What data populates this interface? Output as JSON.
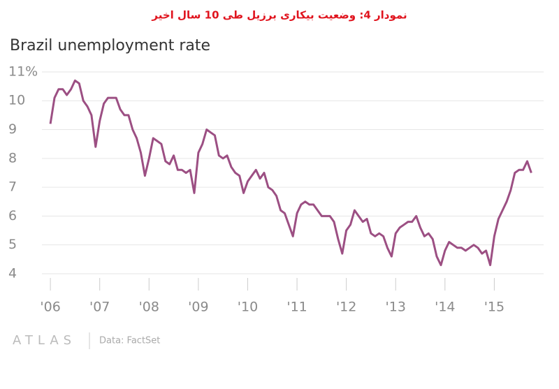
{
  "header": "نمودار 4: وضعیت بیکاری برزیل طی 10 سال اخیر",
  "chart_data": {
    "type": "line",
    "title": "Brazil unemployment rate",
    "source": "Data: FactSet",
    "brand": "ATLAS",
    "color": "#9c4f83",
    "grid": true,
    "x": [
      2006,
      2006.083,
      2006.167,
      2006.25,
      2006.333,
      2006.417,
      2006.5,
      2006.583,
      2006.667,
      2006.75,
      2006.833,
      2006.917,
      2007,
      2007.083,
      2007.167,
      2007.25,
      2007.333,
      2007.417,
      2007.5,
      2007.583,
      2007.667,
      2007.75,
      2007.833,
      2007.917,
      2008,
      2008.083,
      2008.167,
      2008.25,
      2008.333,
      2008.417,
      2008.5,
      2008.583,
      2008.667,
      2008.75,
      2008.833,
      2008.917,
      2009,
      2009.083,
      2009.167,
      2009.25,
      2009.333,
      2009.417,
      2009.5,
      2009.583,
      2009.667,
      2009.75,
      2009.833,
      2009.917,
      2010,
      2010.083,
      2010.167,
      2010.25,
      2010.333,
      2010.417,
      2010.5,
      2010.583,
      2010.667,
      2010.75,
      2010.833,
      2010.917,
      2011,
      2011.083,
      2011.167,
      2011.25,
      2011.333,
      2011.417,
      2011.5,
      2011.583,
      2011.667,
      2011.75,
      2011.833,
      2011.917,
      2012,
      2012.083,
      2012.167,
      2012.25,
      2012.333,
      2012.417,
      2012.5,
      2012.583,
      2012.667,
      2012.75,
      2012.833,
      2012.917,
      2013,
      2013.083,
      2013.167,
      2013.25,
      2013.333,
      2013.417,
      2013.5,
      2013.583,
      2013.667,
      2013.75,
      2013.833,
      2013.917,
      2014,
      2014.083,
      2014.167,
      2014.25,
      2014.333,
      2014.417,
      2014.5,
      2014.583,
      2014.667,
      2014.75,
      2014.833,
      2014.917,
      2015,
      2015.083,
      2015.167,
      2015.25,
      2015.333,
      2015.417,
      2015.5,
      2015.583,
      2015.667,
      2015.75
    ],
    "values": [
      9.2,
      10.1,
      10.4,
      10.4,
      10.2,
      10.4,
      10.7,
      10.6,
      10.0,
      9.8,
      9.5,
      8.4,
      9.3,
      9.9,
      10.1,
      10.1,
      10.1,
      9.7,
      9.5,
      9.5,
      9.0,
      8.7,
      8.2,
      7.4,
      8.0,
      8.7,
      8.6,
      8.5,
      7.9,
      7.8,
      8.1,
      7.6,
      7.6,
      7.5,
      7.6,
      6.8,
      8.2,
      8.5,
      9.0,
      8.9,
      8.8,
      8.1,
      8.0,
      8.1,
      7.7,
      7.5,
      7.4,
      6.8,
      7.2,
      7.4,
      7.6,
      7.3,
      7.5,
      7.0,
      6.9,
      6.7,
      6.2,
      6.1,
      5.7,
      5.3,
      6.1,
      6.4,
      6.5,
      6.4,
      6.4,
      6.2,
      6.0,
      6.0,
      6.0,
      5.8,
      5.2,
      4.7,
      5.5,
      5.7,
      6.2,
      6.0,
      5.8,
      5.9,
      5.4,
      5.3,
      5.4,
      5.3,
      4.9,
      4.6,
      5.4,
      5.6,
      5.7,
      5.8,
      5.8,
      6.0,
      5.6,
      5.3,
      5.4,
      5.2,
      4.6,
      4.3,
      4.8,
      5.1,
      5.0,
      4.9,
      4.9,
      4.8,
      4.9,
      5.0,
      4.9,
      4.7,
      4.8,
      4.3,
      5.3,
      5.9,
      6.2,
      6.5,
      6.9,
      7.5,
      7.6,
      7.6,
      7.9,
      7.5
    ],
    "xlim": [
      2005.8,
      2016.0
    ],
    "xticks": [
      {
        "value": 2006,
        "label": "'06"
      },
      {
        "value": 2007,
        "label": "'07"
      },
      {
        "value": 2008,
        "label": "'08"
      },
      {
        "value": 2009,
        "label": "'09"
      },
      {
        "value": 2010,
        "label": "'10"
      },
      {
        "value": 2011,
        "label": "'11"
      },
      {
        "value": 2012,
        "label": "'12"
      },
      {
        "value": 2013,
        "label": "'13"
      },
      {
        "value": 2014,
        "label": "'14"
      },
      {
        "value": 2015,
        "label": "'15"
      }
    ],
    "ylim": [
      3.5,
      11.2
    ],
    "yticks": [
      4,
      5,
      6,
      7,
      8,
      9,
      10,
      {
        "value": 11,
        "label": "11%"
      }
    ]
  }
}
